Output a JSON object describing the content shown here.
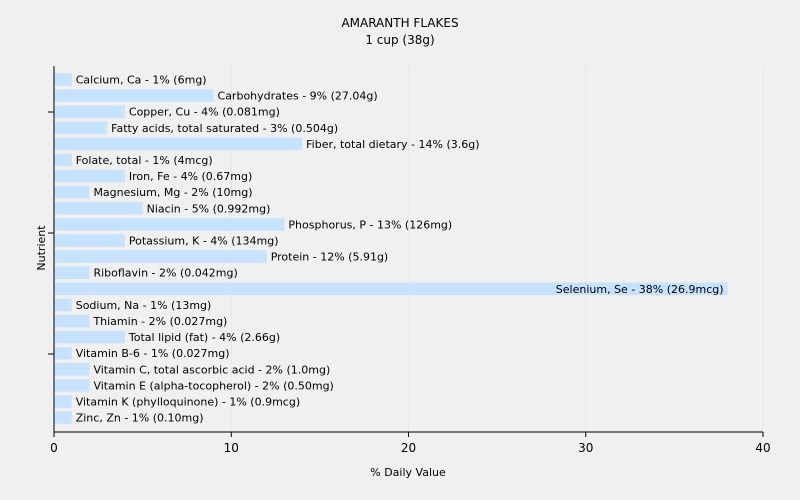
{
  "chart_data": {
    "type": "bar",
    "orientation": "horizontal",
    "title": "AMARANTH FLAKES",
    "subtitle": "1 cup (38g)",
    "xlabel": "% Daily Value",
    "ylabel": "Nutrient",
    "xlim": [
      0,
      40
    ],
    "xticks": [
      0,
      10,
      20,
      30,
      40
    ],
    "grid": true,
    "bar_color": "#c6e2ff",
    "gridline_color": "#e6e6e6",
    "categories": [
      "Calcium, Ca",
      "Carbohydrates",
      "Copper, Cu",
      "Fatty acids, total saturated",
      "Fiber, total dietary",
      "Folate, total",
      "Iron, Fe",
      "Magnesium, Mg",
      "Niacin",
      "Phosphorus, P",
      "Potassium, K",
      "Protein",
      "Riboflavin",
      "Selenium, Se",
      "Sodium, Na",
      "Thiamin",
      "Total lipid (fat)",
      "Vitamin B-6",
      "Vitamin C, total ascorbic acid",
      "Vitamin E (alpha-tocopherol)",
      "Vitamin K (phylloquinone)",
      "Zinc, Zn"
    ],
    "values": [
      1,
      9,
      4,
      3,
      14,
      1,
      4,
      2,
      5,
      13,
      4,
      12,
      2,
      38,
      1,
      2,
      4,
      1,
      2,
      2,
      1,
      1
    ],
    "labels": [
      "Calcium, Ca - 1% (6mg)",
      "Carbohydrates - 9% (27.04g)",
      "Copper, Cu - 4% (0.081mg)",
      "Fatty acids, total saturated - 3% (0.504g)",
      "Fiber, total dietary - 14% (3.6g)",
      "Folate, total - 1% (4mcg)",
      "Iron, Fe - 4% (0.67mg)",
      "Magnesium, Mg - 2% (10mg)",
      "Niacin - 5% (0.992mg)",
      "Phosphorus, P - 13% (126mg)",
      "Potassium, K - 4% (134mg)",
      "Protein - 12% (5.91g)",
      "Riboflavin - 2% (0.042mg)",
      "Selenium, Se - 38% (26.9mcg)",
      "Sodium, Na - 1% (13mg)",
      "Thiamin - 2% (0.027mg)",
      "Total lipid (fat) - 4% (2.66g)",
      "Vitamin B-6 - 1% (0.027mg)",
      "Vitamin C, total ascorbic acid - 2% (1.0mg)",
      "Vitamin E (alpha-tocopherol) - 2% (0.50mg)",
      "Vitamin K (phylloquinone) - 1% (0.9mcg)",
      "Zinc, Zn - 1% (0.10mg)"
    ]
  }
}
